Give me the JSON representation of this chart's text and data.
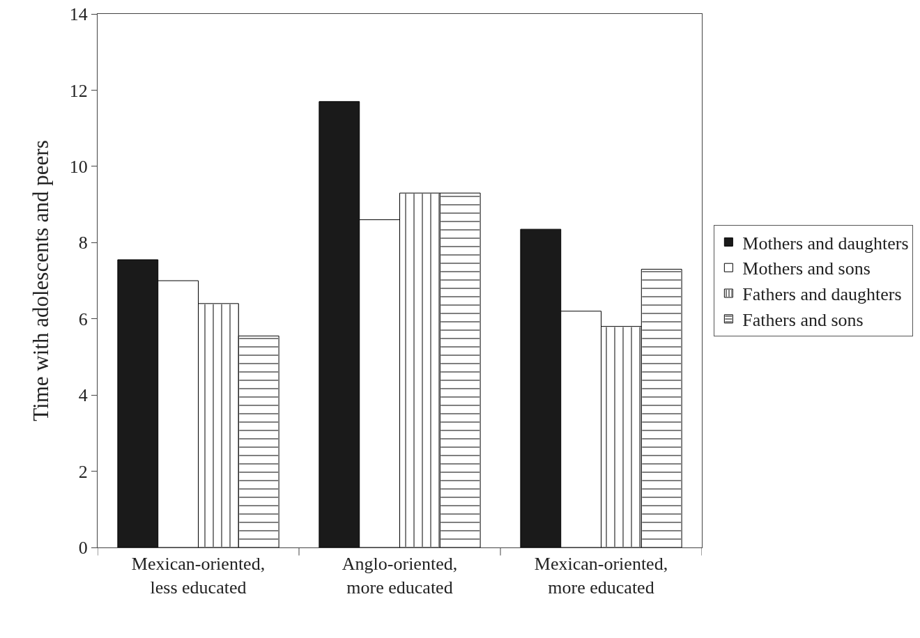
{
  "chart_data": {
    "type": "bar",
    "ylabel": "Time with adolescents and peers",
    "categories": [
      "Mexican-oriented, less educated",
      "Anglo-oriented, more educated",
      "Mexican-oriented, more educated"
    ],
    "series": [
      {
        "name": "Mothers and daughters",
        "color": "#1a1a1a",
        "values": [
          7.55,
          11.7,
          8.35
        ]
      },
      {
        "name": "Mothers and sons",
        "color": "#ffffff",
        "values": [
          7.0,
          8.6,
          6.2
        ]
      },
      {
        "name": "Fathers and daughters",
        "color": "#ffffff",
        "values": [
          6.4,
          9.3,
          5.8
        ]
      },
      {
        "name": "Fathers and sons",
        "color": "#ffffff",
        "values": [
          5.55,
          9.3,
          7.3
        ]
      }
    ],
    "ylim": [
      0,
      14
    ],
    "yticks": [
      0,
      2,
      4,
      6,
      8,
      10,
      12,
      14
    ],
    "grid": false,
    "legend": "right"
  }
}
